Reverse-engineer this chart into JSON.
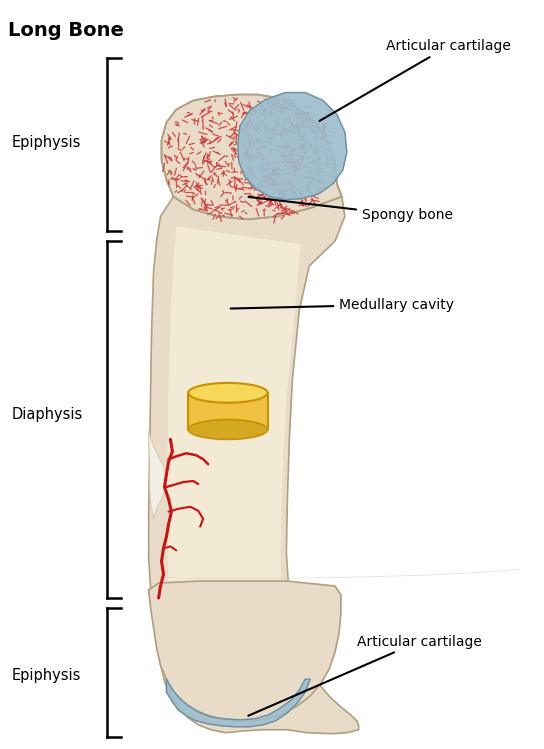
{
  "title": "Long Bone",
  "bg_color": "#ffffff",
  "bone_color": "#e8dcc8",
  "bone_outline_color": "#b0a080",
  "spongy_dot_color": "#cc3333",
  "cartilage_color": "#9bbcce",
  "cartilage_outline": "#7090a0",
  "marrow_color": "#f0c040",
  "marrow_top_color": "#f8d858",
  "marrow_edge_color": "#c89000",
  "blood_color": "#cc1111",
  "bracket_color": "#000000",
  "inner_cavity_color": "#f2ead5",
  "labels": {
    "title": "Long Bone",
    "articular_cartilage_top": "Articular cartilage",
    "spongy_bone": "Spongy bone",
    "medullary_cavity": "Medullary cavity",
    "articular_cartilage_bottom": "Articular cartilage",
    "epiphysis_top": "Epiphysis",
    "diaphysis": "Diaphysis",
    "epiphysis_bottom": "Epiphysis"
  },
  "figsize": [
    5.44,
    7.49
  ],
  "dpi": 100
}
